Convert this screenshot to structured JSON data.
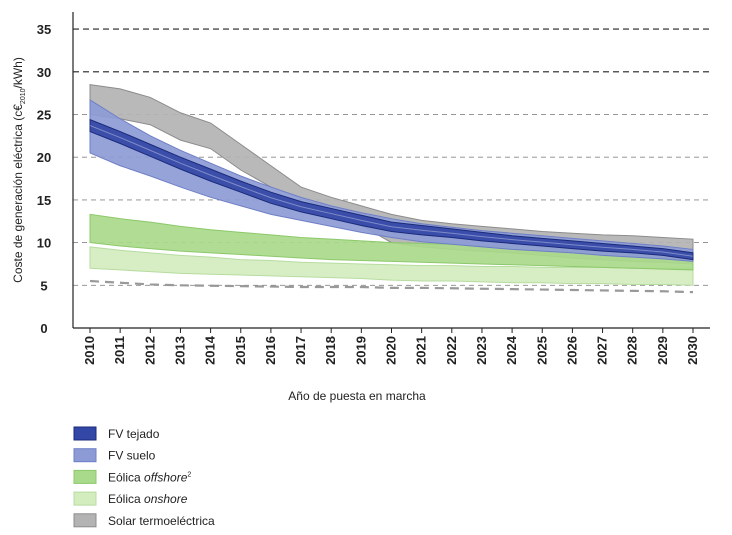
{
  "chart_data": {
    "type": "area",
    "xlabel": "Año de puesta en marcha",
    "ylabel_parts": {
      "prefix": "Coste de generación eléctrica (c€",
      "subscript": "2010",
      "suffix": "/kWh)"
    },
    "ylim": [
      0,
      37
    ],
    "yticks": [
      "0",
      "5",
      "10",
      "15",
      "20",
      "25",
      "30",
      "35"
    ],
    "categories": [
      "2010",
      "2011",
      "2012",
      "2013",
      "2014",
      "2015",
      "2016",
      "2017",
      "2018",
      "2019",
      "2020",
      "2021",
      "2022",
      "2023",
      "2024",
      "2025",
      "2026",
      "2027",
      "2028",
      "2029",
      "2030"
    ],
    "series": [
      {
        "name": "Solar termoeléctrica",
        "label_parts": [
          "Solar termoeléctrica"
        ],
        "italic": [
          false
        ],
        "sup": "",
        "color": "#b3b3b3",
        "edge": "#8c8c8c",
        "low": [
          25.0,
          24.5,
          23.8,
          22.0,
          21.0,
          18.5,
          16.5,
          15.2,
          13.8,
          12.0,
          10.0,
          9.5,
          9.2,
          9.0,
          8.8,
          8.5,
          8.2,
          8.0,
          7.8,
          7.7,
          7.5
        ],
        "high": [
          28.5,
          28.0,
          27.0,
          25.2,
          24.0,
          21.5,
          19.0,
          16.5,
          15.3,
          14.3,
          13.3,
          12.6,
          12.2,
          11.9,
          11.6,
          11.3,
          11.1,
          10.9,
          10.8,
          10.6,
          10.4
        ]
      },
      {
        "name": "Eólica onshore",
        "label_parts": [
          "Eólica ",
          "onshore"
        ],
        "italic": [
          false,
          true
        ],
        "sup": "",
        "color": "#d4edbf",
        "edge": "#b7dca0",
        "low": [
          7.0,
          6.8,
          6.6,
          6.4,
          6.3,
          6.2,
          6.1,
          6.0,
          5.9,
          5.8,
          5.6,
          5.5,
          5.5,
          5.4,
          5.3,
          5.3,
          5.2,
          5.2,
          5.1,
          5.1,
          5.0
        ],
        "high": [
          9.5,
          9.1,
          8.8,
          8.5,
          8.3,
          8.0,
          7.9,
          7.7,
          7.6,
          7.5,
          7.4,
          7.3,
          7.3,
          7.2,
          7.2,
          7.1,
          7.1,
          7.1,
          7.0,
          7.0,
          7.0
        ]
      },
      {
        "name": "Eólica offshore",
        "label_parts": [
          "Eólica ",
          "offshore"
        ],
        "italic": [
          false,
          true
        ],
        "sup": "2",
        "color": "#a9d98a",
        "edge": "#8cc96a",
        "low": [
          10.0,
          9.6,
          9.3,
          9.0,
          8.8,
          8.6,
          8.4,
          8.2,
          8.0,
          7.9,
          7.8,
          7.7,
          7.6,
          7.5,
          7.4,
          7.3,
          7.2,
          7.1,
          7.0,
          6.9,
          6.8
        ],
        "high": [
          13.3,
          12.8,
          12.4,
          11.9,
          11.5,
          11.2,
          10.9,
          10.6,
          10.4,
          10.2,
          10.0,
          9.9,
          9.8,
          9.6,
          9.5,
          9.4,
          9.3,
          9.2,
          9.1,
          9.0,
          8.9
        ]
      },
      {
        "name": "FV suelo",
        "label_parts": [
          "FV suelo"
        ],
        "italic": [
          false
        ],
        "sup": "",
        "color": "#8c9bd6",
        "edge": "#6f7fc6",
        "low": [
          20.5,
          19.0,
          17.8,
          16.5,
          15.3,
          14.3,
          13.3,
          12.6,
          11.9,
          11.2,
          10.6,
          10.1,
          9.8,
          9.5,
          9.2,
          9.0,
          8.8,
          8.5,
          8.3,
          8.1,
          7.8
        ],
        "high": [
          26.7,
          24.5,
          22.5,
          20.8,
          19.3,
          17.8,
          16.5,
          15.3,
          14.3,
          13.5,
          12.8,
          12.2,
          11.8,
          11.4,
          11.1,
          10.8,
          10.5,
          10.2,
          9.9,
          9.6,
          9.2
        ]
      },
      {
        "name": "FV tejado",
        "label_parts": [
          "FV tejado"
        ],
        "italic": [
          false
        ],
        "sup": "",
        "color": "#3347a6",
        "edge": "#1b2a7a",
        "low": [
          23.0,
          21.6,
          20.1,
          18.6,
          17.2,
          15.9,
          14.6,
          13.6,
          12.8,
          12.0,
          11.3,
          10.9,
          10.6,
          10.2,
          9.9,
          9.6,
          9.3,
          9.0,
          8.8,
          8.5,
          8.0
        ],
        "high": [
          24.4,
          23.0,
          21.5,
          20.0,
          18.6,
          17.2,
          15.9,
          14.8,
          14.0,
          13.2,
          12.4,
          12.0,
          11.6,
          11.2,
          10.8,
          10.5,
          10.2,
          9.9,
          9.6,
          9.3,
          8.8
        ]
      }
    ],
    "reference_lines": [
      {
        "name": "tendencia gris",
        "values": [
          5.5,
          5.3,
          5.1,
          5.0,
          4.95,
          4.9,
          4.85,
          4.8,
          4.8,
          4.8,
          4.7,
          4.7,
          4.65,
          4.6,
          4.55,
          4.5,
          4.45,
          4.4,
          4.35,
          4.3,
          4.2
        ],
        "color": "#999999"
      }
    ],
    "legend": {
      "order": [
        "FV tejado",
        "FV suelo",
        "Eólica offshore",
        "Eólica onshore",
        "Solar termoeléctrica"
      ],
      "placement": "bottom-left"
    }
  }
}
